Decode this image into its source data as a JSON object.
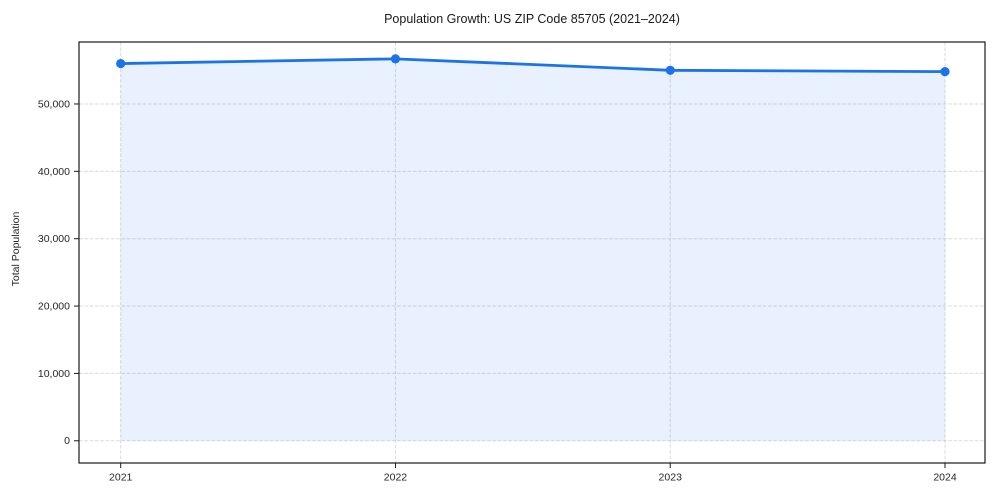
{
  "chart_data": {
    "type": "area",
    "title": "Population Growth: US ZIP Code 85705 (2021–2024)",
    "xlabel": "",
    "ylabel": "Total Population",
    "x": [
      2021,
      2022,
      2023,
      2024
    ],
    "xtick_labels": [
      "2021",
      "2022",
      "2023",
      "2024"
    ],
    "series": [
      {
        "name": "Total Population",
        "values": [
          56000,
          56700,
          55000,
          54800
        ]
      }
    ],
    "yticks": [
      0,
      10000,
      20000,
      30000,
      40000,
      50000
    ],
    "ytick_labels": [
      "0",
      "10,000",
      "20,000",
      "30,000",
      "40,000",
      "50,000"
    ],
    "ylim": [
      -3300,
      59200
    ],
    "grid": true,
    "grid_style": "dashed",
    "legend": "none",
    "colors": {
      "line": "#1a73e8",
      "fill": "#1a73e8",
      "fill_opacity": 0.1,
      "grid": "#b0b0b0",
      "spine": "#1a1a1a",
      "tick_text": "#262626"
    },
    "marker": "circle"
  }
}
